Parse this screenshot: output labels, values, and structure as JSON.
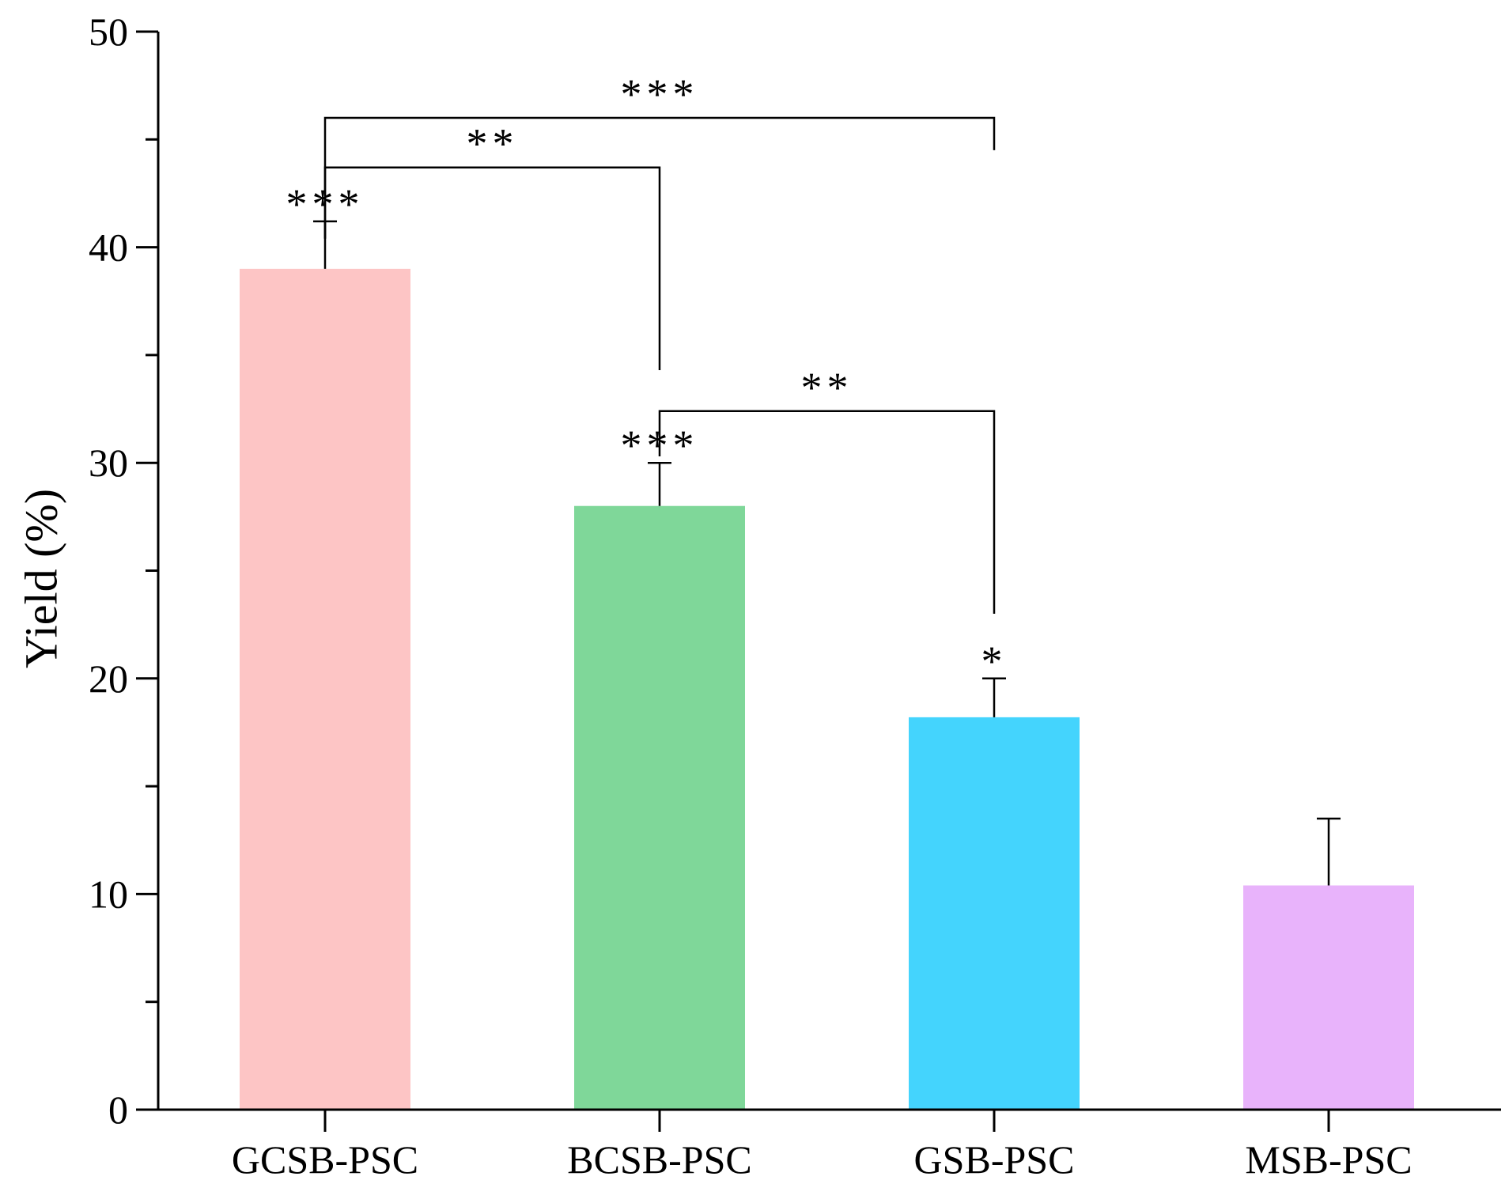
{
  "chart_data": {
    "type": "bar",
    "title": "",
    "xlabel": "",
    "ylabel": "Yield (%)",
    "ylim": [
      0,
      50
    ],
    "yticks": [
      0,
      10,
      20,
      30,
      40,
      50
    ],
    "grid": false,
    "categories": [
      "GCSB-PSC",
      "BCSB-PSC",
      "GSB-PSC",
      "MSB-PSC"
    ],
    "values": [
      39.0,
      28.0,
      18.2,
      10.4
    ],
    "errors": [
      2.2,
      2.0,
      1.8,
      3.1
    ],
    "colors": [
      "#fdc5c5",
      "#7fd799",
      "#44d4fd",
      "#e8b3fb"
    ],
    "bar_annotations": [
      "***",
      "***",
      "*",
      ""
    ],
    "comparisons": [
      {
        "from": 0,
        "to": 2,
        "label": "***",
        "y": 46.0
      },
      {
        "from": 0,
        "to": 1,
        "label": "**",
        "y": 43.7
      },
      {
        "from": 1,
        "to": 2,
        "label": "**",
        "y": 32.4
      }
    ]
  }
}
